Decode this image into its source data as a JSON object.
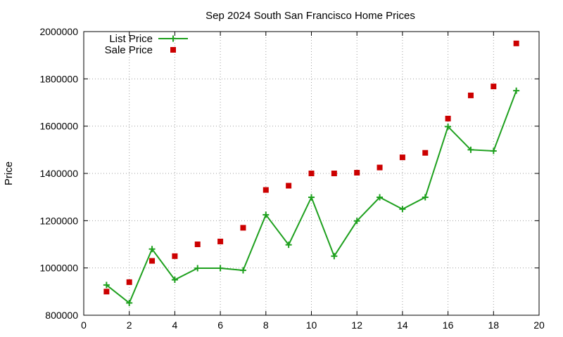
{
  "chart_data": {
    "type": "line",
    "title": "Sep 2024 South San Francisco Home Prices",
    "xlabel": "",
    "ylabel": "Price",
    "xlim": [
      0,
      20
    ],
    "ylim": [
      800000,
      2000000
    ],
    "xticks": [
      0,
      2,
      4,
      6,
      8,
      10,
      12,
      14,
      16,
      18,
      20
    ],
    "yticks": [
      800000,
      1000000,
      1200000,
      1400000,
      1600000,
      1800000,
      2000000
    ],
    "grid": true,
    "legend_position": "top-left",
    "series": [
      {
        "name": "List Price",
        "style": "line-with-plus-markers",
        "color": "#1ea01e",
        "x": [
          1,
          2,
          3,
          4,
          5,
          6,
          7,
          8,
          9,
          10,
          11,
          12,
          13,
          14,
          15,
          16,
          17,
          18,
          19
        ],
        "values": [
          928000,
          852000,
          1080000,
          950000,
          999000,
          999000,
          990000,
          1225000,
          1098000,
          1299000,
          1050000,
          1199000,
          1299000,
          1249000,
          1299000,
          1598000,
          1500000,
          1495000,
          1750000
        ]
      },
      {
        "name": "Sale Price",
        "style": "square-markers",
        "color": "#cc0000",
        "x": [
          1,
          2,
          3,
          4,
          5,
          6,
          7,
          8,
          9,
          10,
          11,
          12,
          13,
          14,
          15,
          16,
          17,
          18,
          19
        ],
        "values": [
          900000,
          940000,
          1030000,
          1050000,
          1100000,
          1112000,
          1170000,
          1330000,
          1348000,
          1400000,
          1400000,
          1403000,
          1425000,
          1468000,
          1487000,
          1632000,
          1730000,
          1768000,
          1950000
        ]
      }
    ]
  }
}
